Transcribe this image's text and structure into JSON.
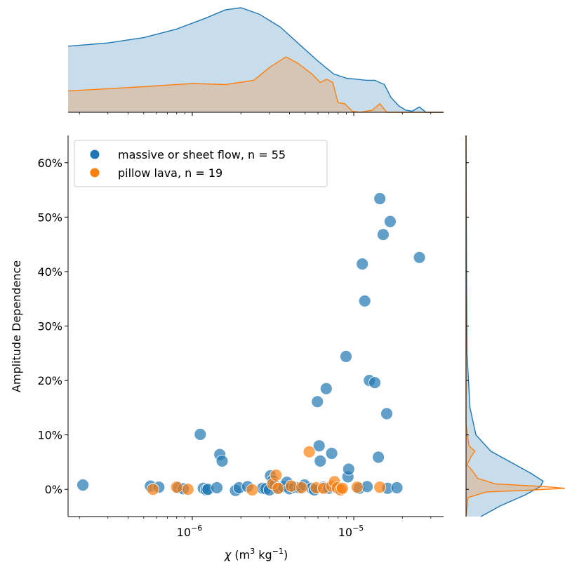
{
  "chart_data": {
    "type": "scatter",
    "xscale": "log",
    "xlim": [
      1.7e-07,
      3.6e-05
    ],
    "ylim": [
      -5,
      65
    ],
    "yticks": [
      {
        "value": 0,
        "label": "0%"
      },
      {
        "value": 10,
        "label": "10%"
      },
      {
        "value": 20,
        "label": "20%"
      },
      {
        "value": 30,
        "label": "30%"
      },
      {
        "value": 40,
        "label": "40%"
      },
      {
        "value": 50,
        "label": "50%"
      },
      {
        "value": 60,
        "label": "60%"
      }
    ],
    "xticks": [
      {
        "exp": -6,
        "label_base": "10",
        "label_exp": "−6"
      },
      {
        "exp": -5,
        "label_base": "10",
        "label_exp": "−5"
      }
    ],
    "xlabel": {
      "symbol": "χ",
      "unit_open": " (m",
      "unit_sup1": "3",
      "unit_mid": " kg",
      "unit_sup2": "−1",
      "unit_close": ")"
    },
    "ylabel": "Amplitude Dependence",
    "legend_position": "top-left",
    "series": [
      {
        "name": "massive or sheet flow, n = 55",
        "color": "#1f77b4",
        "points": [
          [
            2.1e-07,
            0.8
          ],
          [
            5.5e-07,
            0.6
          ],
          [
            6.2e-07,
            0.4
          ],
          [
            8.2e-07,
            0.3
          ],
          [
            8.8e-07,
            0.1
          ],
          [
            1.12e-06,
            10.1
          ],
          [
            1.17e-06,
            0.2
          ],
          [
            1.22e-06,
            -0.1
          ],
          [
            1.25e-06,
            0.0
          ],
          [
            1.42e-06,
            0.3
          ],
          [
            1.48e-06,
            6.4
          ],
          [
            1.53e-06,
            5.2
          ],
          [
            1.85e-06,
            -0.2
          ],
          [
            1.95e-06,
            0.3
          ],
          [
            2.2e-06,
            0.5
          ],
          [
            2.72e-06,
            0.2
          ],
          [
            2.85e-06,
            0.1
          ],
          [
            3e-06,
            -0.1
          ],
          [
            3.05e-06,
            2.5
          ],
          [
            3.15e-06,
            1.6
          ],
          [
            3.25e-06,
            0.8
          ],
          [
            3.4e-06,
            0.2
          ],
          [
            3.65e-06,
            0.5
          ],
          [
            3.85e-06,
            1.3
          ],
          [
            4e-06,
            0.1
          ],
          [
            4.3e-06,
            0.4
          ],
          [
            4.6e-06,
            0.3
          ],
          [
            4.95e-06,
            0.8
          ],
          [
            5.5e-06,
            0.2
          ],
          [
            5.7e-06,
            -0.1
          ],
          [
            5.95e-06,
            16.1
          ],
          [
            6.1e-06,
            8.0
          ],
          [
            6.2e-06,
            5.2
          ],
          [
            6.5e-06,
            0.4
          ],
          [
            6.75e-06,
            18.5
          ],
          [
            7e-06,
            0.2
          ],
          [
            7.3e-06,
            6.6
          ],
          [
            8e-06,
            0.1
          ],
          [
            8.95e-06,
            24.4
          ],
          [
            9.2e-06,
            2.3
          ],
          [
            9.3e-06,
            3.7
          ],
          [
            1.08e-05,
            0.2
          ],
          [
            1.13e-05,
            41.4
          ],
          [
            1.17e-05,
            34.6
          ],
          [
            1.21e-05,
            0.5
          ],
          [
            1.25e-05,
            20.0
          ],
          [
            1.35e-05,
            19.6
          ],
          [
            1.42e-05,
            5.9
          ],
          [
            1.45e-05,
            53.4
          ],
          [
            1.52e-05,
            46.8
          ],
          [
            1.6e-05,
            13.9
          ],
          [
            1.62e-05,
            0.2
          ],
          [
            1.68e-05,
            49.2
          ],
          [
            1.85e-05,
            0.3
          ],
          [
            2.55e-05,
            42.6
          ]
        ]
      },
      {
        "name": "pillow lava, n = 19",
        "color": "#ff7f0e",
        "points": [
          [
            5.7e-07,
            0.0
          ],
          [
            8e-07,
            0.4
          ],
          [
            9.4e-07,
            0.0
          ],
          [
            2.35e-06,
            -0.1
          ],
          [
            3.15e-06,
            1.0
          ],
          [
            3.3e-06,
            2.6
          ],
          [
            3.4e-06,
            0.2
          ],
          [
            4.1e-06,
            0.6
          ],
          [
            4.75e-06,
            0.3
          ],
          [
            5.3e-06,
            6.9
          ],
          [
            5.85e-06,
            0.3
          ],
          [
            6.5e-06,
            0.2
          ],
          [
            7.3e-06,
            0.6
          ],
          [
            7.6e-06,
            1.4
          ],
          [
            7.9e-06,
            0.3
          ],
          [
            8.3e-06,
            -0.1
          ],
          [
            8.5e-06,
            0.2
          ],
          [
            1.05e-05,
            0.4
          ],
          [
            1.45e-05,
            0.4
          ]
        ]
      }
    ],
    "top_kde": {
      "massive": [
        [
          1.7e-07,
          0.62
        ],
        [
          3e-07,
          0.65
        ],
        [
          5e-07,
          0.7
        ],
        [
          8e-07,
          0.78
        ],
        [
          1.2e-06,
          0.88
        ],
        [
          1.6e-06,
          0.96
        ],
        [
          2e-06,
          0.98
        ],
        [
          2.6e-06,
          0.92
        ],
        [
          3.5e-06,
          0.8
        ],
        [
          4.5e-06,
          0.65
        ],
        [
          6e-06,
          0.48
        ],
        [
          7.5e-06,
          0.36
        ],
        [
          9e-06,
          0.32
        ],
        [
          1.05e-05,
          0.31
        ],
        [
          1.2e-05,
          0.3
        ],
        [
          1.35e-05,
          0.3
        ],
        [
          1.55e-05,
          0.26
        ],
        [
          1.7e-05,
          0.14
        ],
        [
          1.9e-05,
          0.06
        ],
        [
          2.1e-05,
          0.02
        ],
        [
          2.3e-05,
          0.01
        ],
        [
          2.55e-05,
          0.05
        ],
        [
          2.8e-05,
          0.0
        ],
        [
          3.6e-05,
          0.0
        ]
      ],
      "pillow": [
        [
          1.7e-07,
          0.2
        ],
        [
          5e-07,
          0.24
        ],
        [
          1e-06,
          0.27
        ],
        [
          1.6e-06,
          0.26
        ],
        [
          2.4e-06,
          0.3
        ],
        [
          3e-06,
          0.42
        ],
        [
          3.8e-06,
          0.52
        ],
        [
          4.5e-06,
          0.46
        ],
        [
          5.5e-06,
          0.36
        ],
        [
          6.2e-06,
          0.28
        ],
        [
          6.8e-06,
          0.31
        ],
        [
          7.4e-06,
          0.28
        ],
        [
          8e-06,
          0.09
        ],
        [
          8.8e-06,
          0.08
        ],
        [
          9.8e-06,
          0.01
        ],
        [
          1.1e-05,
          0.0
        ],
        [
          1.3e-05,
          0.02
        ],
        [
          1.45e-05,
          0.08
        ],
        [
          1.6e-05,
          0.0
        ],
        [
          3.6e-05,
          0.0
        ]
      ]
    },
    "right_kde": {
      "massive": [
        [
          65,
          0.0
        ],
        [
          40,
          0.005
        ],
        [
          25,
          0.01
        ],
        [
          15,
          0.04
        ],
        [
          10,
          0.1
        ],
        [
          7,
          0.25
        ],
        [
          5,
          0.45
        ],
        [
          3,
          0.65
        ],
        [
          1.5,
          0.78
        ],
        [
          0.5,
          0.75
        ],
        [
          -1,
          0.6
        ],
        [
          -3,
          0.35
        ],
        [
          -5,
          0.15
        ]
      ],
      "pillow": [
        [
          65,
          0.0
        ],
        [
          12,
          0.0
        ],
        [
          8,
          0.03
        ],
        [
          7,
          0.09
        ],
        [
          6,
          0.05
        ],
        [
          4.5,
          0.01
        ],
        [
          3.5,
          0.06
        ],
        [
          2,
          0.12
        ],
        [
          1,
          0.3
        ],
        [
          0.5,
          0.8
        ],
        [
          0.2,
          1.0
        ],
        [
          -0.1,
          0.7
        ],
        [
          -0.5,
          0.2
        ],
        [
          -1.5,
          0.02
        ],
        [
          -5,
          0.0
        ]
      ]
    }
  }
}
